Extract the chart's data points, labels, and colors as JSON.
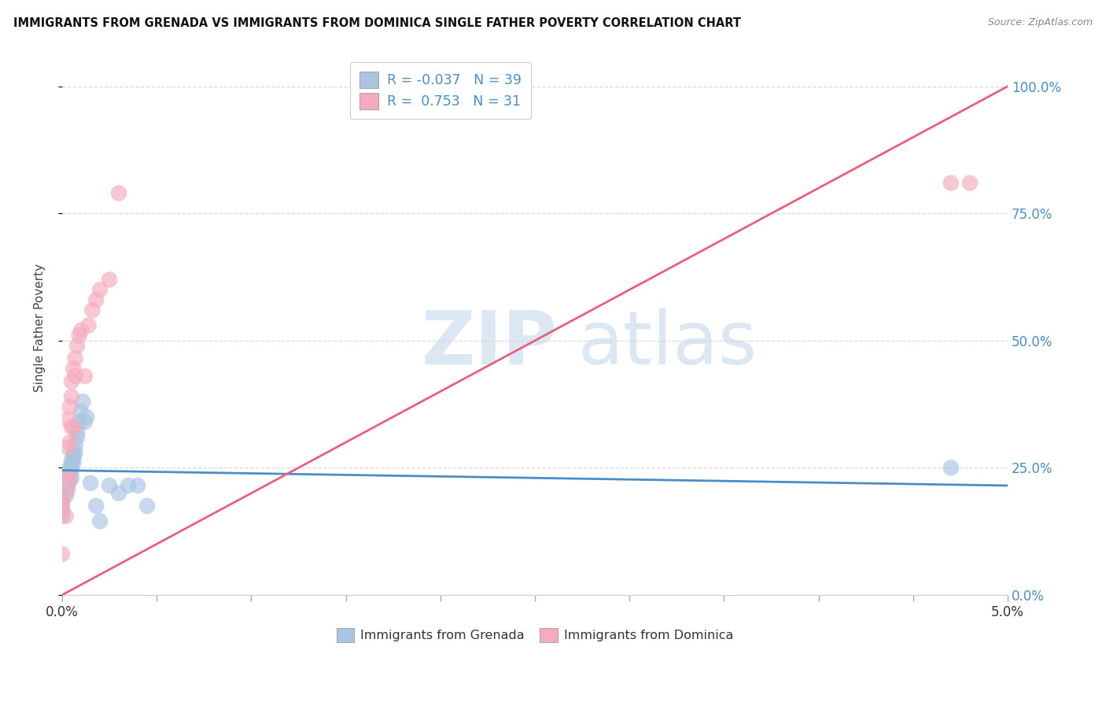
{
  "title": "IMMIGRANTS FROM GRENADA VS IMMIGRANTS FROM DOMINICA SINGLE FATHER POVERTY CORRELATION CHART",
  "source": "Source: ZipAtlas.com",
  "ylabel": "Single Father Poverty",
  "legend_label1": "Immigrants from Grenada",
  "legend_label2": "Immigrants from Dominica",
  "R1": -0.037,
  "N1": 39,
  "R2": 0.753,
  "N2": 31,
  "color1": "#aac4e2",
  "color2": "#f5aabe",
  "line_color1": "#4a8ec8",
  "line_color2": "#e8607a",
  "watermark_color": "#ccdff0",
  "scatter1_x": [
    0.0,
    0.0,
    0.0,
    0.0,
    0.0,
    0.0002,
    0.0002,
    0.0002,
    0.0003,
    0.0003,
    0.0003,
    0.0004,
    0.0004,
    0.0004,
    0.0005,
    0.0005,
    0.0005,
    0.0005,
    0.0006,
    0.0006,
    0.0006,
    0.0007,
    0.0007,
    0.0008,
    0.0008,
    0.0009,
    0.001,
    0.0011,
    0.0012,
    0.0013,
    0.0015,
    0.0018,
    0.002,
    0.0025,
    0.003,
    0.0035,
    0.004,
    0.0045,
    0.047
  ],
  "scatter1_y": [
    0.195,
    0.185,
    0.175,
    0.165,
    0.155,
    0.215,
    0.205,
    0.195,
    0.235,
    0.225,
    0.215,
    0.25,
    0.24,
    0.225,
    0.265,
    0.255,
    0.245,
    0.23,
    0.28,
    0.27,
    0.26,
    0.295,
    0.28,
    0.32,
    0.31,
    0.34,
    0.36,
    0.38,
    0.34,
    0.35,
    0.22,
    0.175,
    0.145,
    0.215,
    0.2,
    0.215,
    0.215,
    0.175,
    0.25
  ],
  "scatter2_x": [
    0.0,
    0.0,
    0.0,
    0.0,
    0.0002,
    0.0002,
    0.0003,
    0.0003,
    0.0003,
    0.0004,
    0.0004,
    0.0004,
    0.0005,
    0.0005,
    0.0005,
    0.0006,
    0.0006,
    0.0007,
    0.0007,
    0.0008,
    0.0009,
    0.001,
    0.0012,
    0.0014,
    0.0016,
    0.0018,
    0.002,
    0.0025,
    0.003,
    0.047,
    0.048
  ],
  "scatter2_y": [
    0.185,
    0.175,
    0.165,
    0.08,
    0.23,
    0.155,
    0.29,
    0.345,
    0.205,
    0.37,
    0.3,
    0.23,
    0.42,
    0.39,
    0.33,
    0.445,
    0.33,
    0.465,
    0.43,
    0.49,
    0.51,
    0.52,
    0.43,
    0.53,
    0.56,
    0.58,
    0.6,
    0.62,
    0.79,
    0.81,
    0.81
  ],
  "trendline1_x": [
    0.0,
    0.05
  ],
  "trendline1_y": [
    0.245,
    0.215
  ],
  "trendline2_x": [
    0.0,
    0.05
  ],
  "trendline2_y": [
    0.0,
    1.0
  ],
  "xmin": 0.0,
  "xmax": 0.05,
  "ymin": 0.0,
  "ymax": 1.05,
  "ytick_vals": [
    0.0,
    0.25,
    0.5,
    0.75,
    1.0
  ],
  "ytick_labels": [
    "0.0%",
    "25.0%",
    "50.0%",
    "75.0%",
    "100.0%"
  ],
  "grid_color": "#d8d8d8",
  "spine_color": "#cccccc",
  "background": "#ffffff"
}
